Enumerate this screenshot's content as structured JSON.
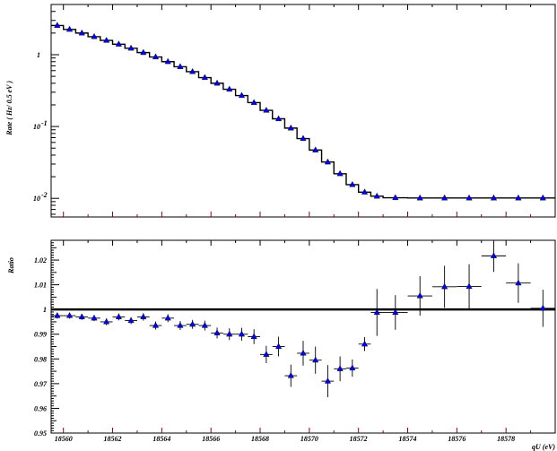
{
  "chart_data": [
    {
      "type": "line",
      "panel": "top",
      "ylabel": "Rate ( Hz/ 0.5 eV )",
      "yscale": "log",
      "ylim": [
        0.0055,
        5
      ],
      "xlim": [
        18559.5,
        18580
      ],
      "y_ticks": [
        {
          "value": 0.01,
          "base": "10",
          "exp": "-2"
        },
        {
          "value": 0.1,
          "base": "10",
          "exp": "-1"
        },
        {
          "value": 1,
          "base": "1",
          "exp": ""
        }
      ],
      "series": [
        {
          "kind": "histogram",
          "edges": [
            18559.5,
            18560,
            18560.5,
            18561,
            18561.5,
            18562,
            18562.5,
            18563,
            18563.5,
            18564,
            18564.5,
            18565,
            18565.5,
            18566,
            18566.5,
            18567,
            18567.5,
            18568,
            18568.5,
            18569,
            18569.5,
            18570,
            18570.5,
            18571,
            18571.5,
            18572,
            18572.5,
            18573,
            18574,
            18575,
            18576,
            18577,
            18578,
            18579,
            18580
          ],
          "values": [
            2.55,
            2.25,
            2.0,
            1.78,
            1.58,
            1.4,
            1.23,
            1.07,
            0.93,
            0.8,
            0.68,
            0.58,
            0.48,
            0.4,
            0.33,
            0.27,
            0.215,
            0.168,
            0.128,
            0.095,
            0.068,
            0.047,
            0.032,
            0.022,
            0.0155,
            0.0122,
            0.0107,
            0.0102,
            0.0101,
            0.0101,
            0.0101,
            0.0101,
            0.0101,
            0.0101
          ]
        },
        {
          "kind": "points",
          "marker": "triangle",
          "color": "#0000ff",
          "x": [
            18559.75,
            18560.25,
            18560.75,
            18561.25,
            18561.75,
            18562.25,
            18562.75,
            18563.25,
            18563.75,
            18564.25,
            18564.75,
            18565.25,
            18565.75,
            18566.25,
            18566.75,
            18567.25,
            18567.75,
            18568.25,
            18568.75,
            18569.25,
            18569.75,
            18570.25,
            18570.75,
            18571.25,
            18571.75,
            18572.25,
            18572.75,
            18573.5,
            18574.5,
            18575.5,
            18576.5,
            18577.5,
            18578.5,
            18579.5
          ],
          "y": [
            2.55,
            2.25,
            2.0,
            1.78,
            1.58,
            1.4,
            1.23,
            1.07,
            0.93,
            0.8,
            0.68,
            0.58,
            0.48,
            0.4,
            0.33,
            0.27,
            0.215,
            0.168,
            0.128,
            0.095,
            0.068,
            0.047,
            0.032,
            0.022,
            0.0155,
            0.0122,
            0.0107,
            0.0102,
            0.0101,
            0.0101,
            0.0101,
            0.0101,
            0.0101,
            0.0101
          ]
        }
      ]
    },
    {
      "type": "scatter",
      "panel": "bottom",
      "ylabel": "Ratio",
      "xlabel": "qU (eV)",
      "ylim": [
        0.95,
        1.028
      ],
      "xlim": [
        18559.5,
        18580
      ],
      "x_ticks": [
        "18560",
        "18562",
        "18564",
        "18566",
        "18568",
        "18570",
        "18572",
        "18574",
        "18576",
        "18578"
      ],
      "y_ticks": [
        "0.95",
        "0.96",
        "0.97",
        "0.98",
        "0.99",
        "1",
        "1.01",
        "1.02"
      ],
      "reference_line": 1,
      "series": [
        {
          "kind": "points_with_errors",
          "marker": "triangle",
          "color": "#0000ff",
          "x": [
            18559.75,
            18560.25,
            18560.75,
            18561.25,
            18561.75,
            18562.25,
            18562.75,
            18563.25,
            18563.75,
            18564.25,
            18564.75,
            18565.25,
            18565.75,
            18566.25,
            18566.75,
            18567.25,
            18567.75,
            18568.25,
            18568.75,
            18569.25,
            18569.75,
            18570.25,
            18570.75,
            18571.25,
            18571.75,
            18572.25,
            18572.75,
            18573.5,
            18574.5,
            18575.5,
            18576.5,
            18577.5,
            18578.5,
            18579.5
          ],
          "xerr": [
            0.25,
            0.25,
            0.25,
            0.25,
            0.25,
            0.25,
            0.25,
            0.25,
            0.25,
            0.25,
            0.25,
            0.25,
            0.25,
            0.25,
            0.25,
            0.25,
            0.25,
            0.25,
            0.25,
            0.25,
            0.25,
            0.25,
            0.25,
            0.25,
            0.25,
            0.25,
            0.25,
            0.5,
            0.5,
            0.5,
            0.5,
            0.5,
            0.5,
            0.5
          ],
          "y": [
            0.9975,
            0.9975,
            0.997,
            0.9965,
            0.995,
            0.997,
            0.9955,
            0.997,
            0.9935,
            0.9965,
            0.9935,
            0.994,
            0.9935,
            0.9905,
            0.99,
            0.99,
            0.989,
            0.9818,
            0.985,
            0.9732,
            0.9823,
            0.9795,
            0.971,
            0.976,
            0.9763,
            0.986,
            0.9988,
            0.9988,
            1.0055,
            1.0092,
            1.0093,
            1.0217,
            1.0107,
            1.0005
          ],
          "yerr": [
            0.0012,
            0.0012,
            0.0012,
            0.0012,
            0.0014,
            0.0014,
            0.0014,
            0.0015,
            0.0016,
            0.0016,
            0.0018,
            0.0018,
            0.002,
            0.0022,
            0.0024,
            0.0026,
            0.003,
            0.0035,
            0.004,
            0.0045,
            0.005,
            0.0055,
            0.0065,
            0.005,
            0.0035,
            0.0028,
            0.0095,
            0.007,
            0.008,
            0.0085,
            0.009,
            0.0065,
            0.008,
            0.0075
          ]
        }
      ]
    }
  ]
}
